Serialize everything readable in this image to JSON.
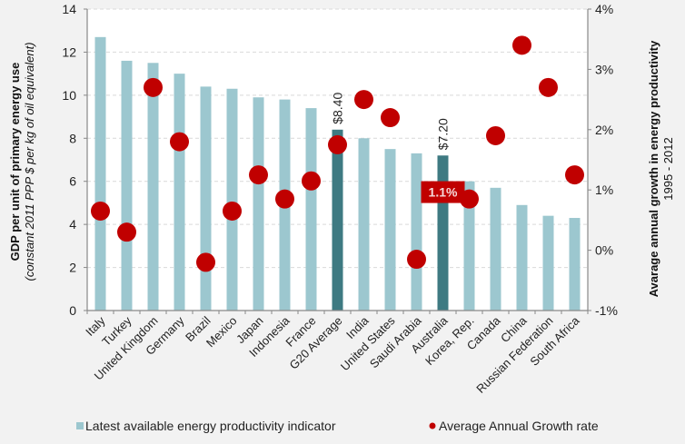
{
  "chart_data": {
    "type": "bar",
    "title": "",
    "xlabel": "",
    "ylabel": "GDP per unit of primary energy use",
    "ylabel_sub": "(constant 2011 PPP $ per kg of oil equivalent)",
    "y2label": "Avarage annual growth in energy  productivity",
    "y2label_sub": "1995 - 2012",
    "ylim": [
      0,
      14
    ],
    "y_ticks": [
      0,
      2,
      4,
      6,
      8,
      10,
      12,
      14
    ],
    "y2lim": [
      -1,
      4
    ],
    "y2_ticks": [
      "-1%",
      "0%",
      "1%",
      "2%",
      "3%",
      "4%"
    ],
    "y2_tick_values": [
      -1,
      0,
      1,
      2,
      3,
      4
    ],
    "grid": true,
    "legend_position": "bottom",
    "categories": [
      "Italy",
      "Turkey",
      "United Kingdom",
      "Germany",
      "Brazil",
      "Mexico",
      "Japan",
      "Indonesia",
      "France",
      "G20 Average",
      "India",
      "United States",
      "Saudi Arabia",
      "Australia",
      "Korea, Rep.",
      "Canada",
      "China",
      "Russian Federation",
      "South Africa"
    ],
    "highlighted": [
      "G20 Average",
      "Australia"
    ],
    "series": [
      {
        "name": "Latest available energy productivity indicator",
        "type": "bar",
        "axis": "left",
        "color": "#9cc7cf",
        "highlight_color": "#3e7a82",
        "values": [
          12.7,
          11.6,
          11.5,
          11.0,
          10.4,
          10.3,
          9.9,
          9.8,
          9.4,
          8.4,
          8.0,
          7.5,
          7.3,
          7.2,
          6.0,
          5.7,
          4.9,
          4.4,
          4.3
        ]
      },
      {
        "name": "Average Annual Growth rate",
        "type": "scatter",
        "axis": "right",
        "unit": "%",
        "color": "#c00000",
        "values": [
          0.65,
          0.3,
          2.7,
          1.8,
          -0.2,
          0.65,
          1.25,
          0.85,
          1.15,
          1.75,
          2.5,
          2.2,
          -0.15,
          1.1,
          0.85,
          1.9,
          3.4,
          2.7,
          1.25
        ]
      }
    ],
    "annotations": [
      {
        "category": "G20 Average",
        "text": "$8.40",
        "type": "bar-label"
      },
      {
        "category": "Australia",
        "text": "$7.20",
        "type": "bar-label"
      },
      {
        "category": "Australia",
        "text": "1.1%",
        "type": "callout",
        "color": "#c00000"
      }
    ]
  },
  "legend": {
    "bar_label": "Latest available energy productivity indicator",
    "dot_label": "Average Annual Growth rate"
  }
}
